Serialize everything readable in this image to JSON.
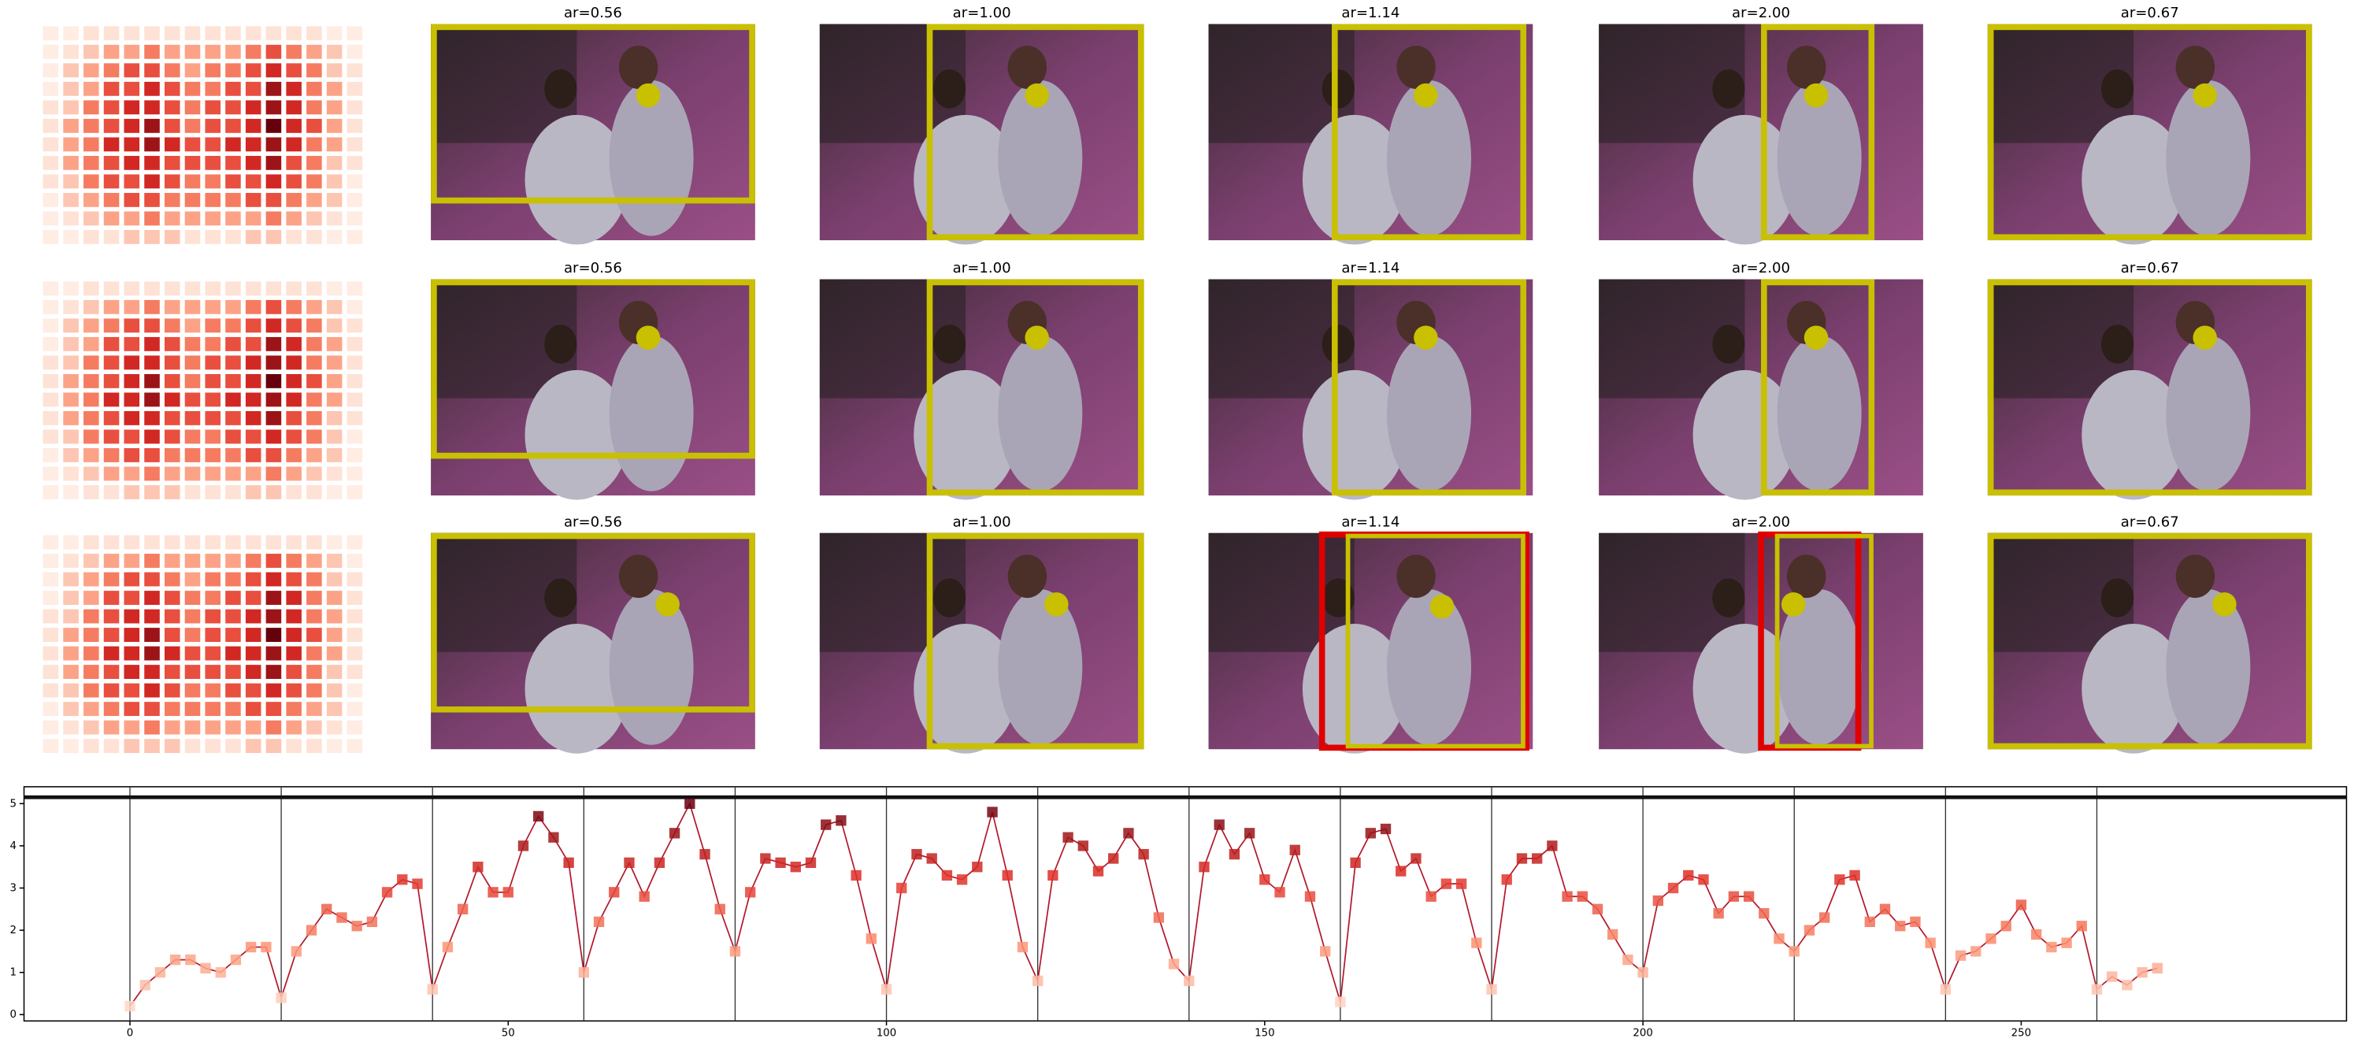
{
  "panels": {
    "titles": [
      "ar=0.56",
      "ar=1.00",
      "ar=1.14",
      "ar=2.00",
      "ar=0.67"
    ],
    "heatmap": [
      [
        1,
        1,
        2,
        2,
        2,
        2,
        2,
        2,
        2,
        2,
        2,
        2,
        2,
        2,
        1,
        1
      ],
      [
        1,
        2,
        3,
        4,
        4,
        5,
        4,
        4,
        4,
        4,
        5,
        6,
        5,
        4,
        3,
        1
      ],
      [
        1,
        3,
        4,
        5,
        6,
        6,
        5,
        4,
        5,
        5,
        6,
        7,
        6,
        5,
        3,
        2
      ],
      [
        1,
        3,
        4,
        6,
        6,
        7,
        6,
        5,
        5,
        6,
        6,
        8,
        7,
        5,
        4,
        2
      ],
      [
        2,
        3,
        5,
        6,
        7,
        7,
        6,
        5,
        6,
        6,
        7,
        8,
        7,
        5,
        4,
        2
      ],
      [
        2,
        4,
        5,
        6,
        7,
        8,
        6,
        5,
        6,
        6,
        7,
        9,
        7,
        6,
        4,
        2
      ],
      [
        2,
        4,
        5,
        7,
        7,
        8,
        7,
        6,
        6,
        7,
        7,
        8,
        7,
        5,
        4,
        2
      ],
      [
        2,
        4,
        5,
        6,
        7,
        7,
        6,
        6,
        6,
        6,
        7,
        8,
        6,
        5,
        3,
        2
      ],
      [
        2,
        3,
        5,
        6,
        6,
        7,
        6,
        5,
        5,
        6,
        6,
        7,
        6,
        5,
        3,
        1
      ],
      [
        1,
        3,
        4,
        5,
        6,
        6,
        5,
        5,
        5,
        5,
        6,
        6,
        5,
        4,
        3,
        1
      ],
      [
        1,
        2,
        3,
        4,
        4,
        5,
        4,
        4,
        4,
        4,
        4,
        5,
        4,
        3,
        2,
        1
      ],
      [
        1,
        1,
        2,
        2,
        3,
        3,
        3,
        2,
        2,
        2,
        3,
        3,
        2,
        2,
        1,
        1
      ]
    ]
  },
  "chart_data": {
    "type": "line",
    "x": [
      0,
      2,
      4,
      6,
      8,
      10,
      12,
      14,
      16,
      18,
      20,
      22,
      24,
      26,
      28,
      30,
      32,
      34,
      36,
      38,
      40,
      42,
      44,
      46,
      48,
      50,
      52,
      54,
      56,
      58,
      60,
      62,
      64,
      66,
      68,
      70,
      72,
      74,
      76,
      78,
      80,
      82,
      84,
      86,
      88,
      90,
      92,
      94,
      96,
      98,
      100,
      102,
      104,
      106,
      108,
      110,
      112,
      114,
      116,
      118,
      120,
      122,
      124,
      126,
      128,
      130,
      132,
      134,
      136,
      138,
      140,
      142,
      144,
      146,
      148,
      150,
      152,
      154,
      156,
      158,
      160,
      162,
      164,
      166,
      168,
      170,
      172,
      174,
      176,
      178,
      180,
      182,
      184,
      186,
      188,
      190,
      192,
      194,
      196,
      198,
      200,
      202,
      204,
      206,
      208,
      210,
      212,
      214,
      216,
      218,
      220,
      222,
      224,
      226,
      228,
      230,
      232,
      234,
      236,
      238,
      240,
      242,
      244,
      246,
      248,
      250,
      252,
      254,
      256,
      258,
      260,
      262,
      264,
      266,
      268
    ],
    "values": [
      0.2,
      0.7,
      1.0,
      1.3,
      1.3,
      1.1,
      1.0,
      1.3,
      1.6,
      1.6,
      0.4,
      1.5,
      2.0,
      2.5,
      2.3,
      2.1,
      2.2,
      2.9,
      3.2,
      3.1,
      0.6,
      1.6,
      2.5,
      3.5,
      2.9,
      2.9,
      4.0,
      4.7,
      4.2,
      3.6,
      1.0,
      2.2,
      2.9,
      3.6,
      2.8,
      3.6,
      4.3,
      5.0,
      3.8,
      2.5,
      1.5,
      2.9,
      3.7,
      3.6,
      3.5,
      3.6,
      4.5,
      4.6,
      3.3,
      1.8,
      0.6,
      3.0,
      3.8,
      3.7,
      3.3,
      3.2,
      3.5,
      4.8,
      3.3,
      1.6,
      0.8,
      3.3,
      4.2,
      4.0,
      3.4,
      3.7,
      4.3,
      3.8,
      2.3,
      1.2,
      0.8,
      3.5,
      4.5,
      3.8,
      4.3,
      3.2,
      2.9,
      3.9,
      2.8,
      1.5,
      0.3,
      3.6,
      4.3,
      4.4,
      3.4,
      3.7,
      2.8,
      3.1,
      3.1,
      1.7,
      0.6,
      3.2,
      3.7,
      3.7,
      4.0,
      2.8,
      2.8,
      2.5,
      1.9,
      1.3,
      1.0,
      2.7,
      3.0,
      3.3,
      3.2,
      2.4,
      2.8,
      2.8,
      2.4,
      1.8,
      1.5,
      2.0,
      2.3,
      3.2,
      3.3,
      2.2,
      2.5,
      2.1,
      2.2,
      1.7,
      0.6,
      1.4,
      1.5,
      1.8,
      2.1,
      2.6,
      1.9,
      1.6,
      1.7,
      2.1,
      0.6,
      0.9,
      0.7,
      1.0,
      1.1
    ],
    "color": "#b2182b",
    "xlim": [
      -14,
      293
    ],
    "ylim": [
      -0.15,
      5.4
    ],
    "xticks": [
      0,
      50,
      100,
      150,
      200,
      250
    ],
    "yticks": [
      0,
      1,
      2,
      3,
      4,
      5
    ],
    "vlines": [
      0,
      20,
      40,
      60,
      80,
      100,
      120,
      140,
      160,
      180,
      200,
      220,
      240,
      260
    ],
    "hline": 5.15
  }
}
